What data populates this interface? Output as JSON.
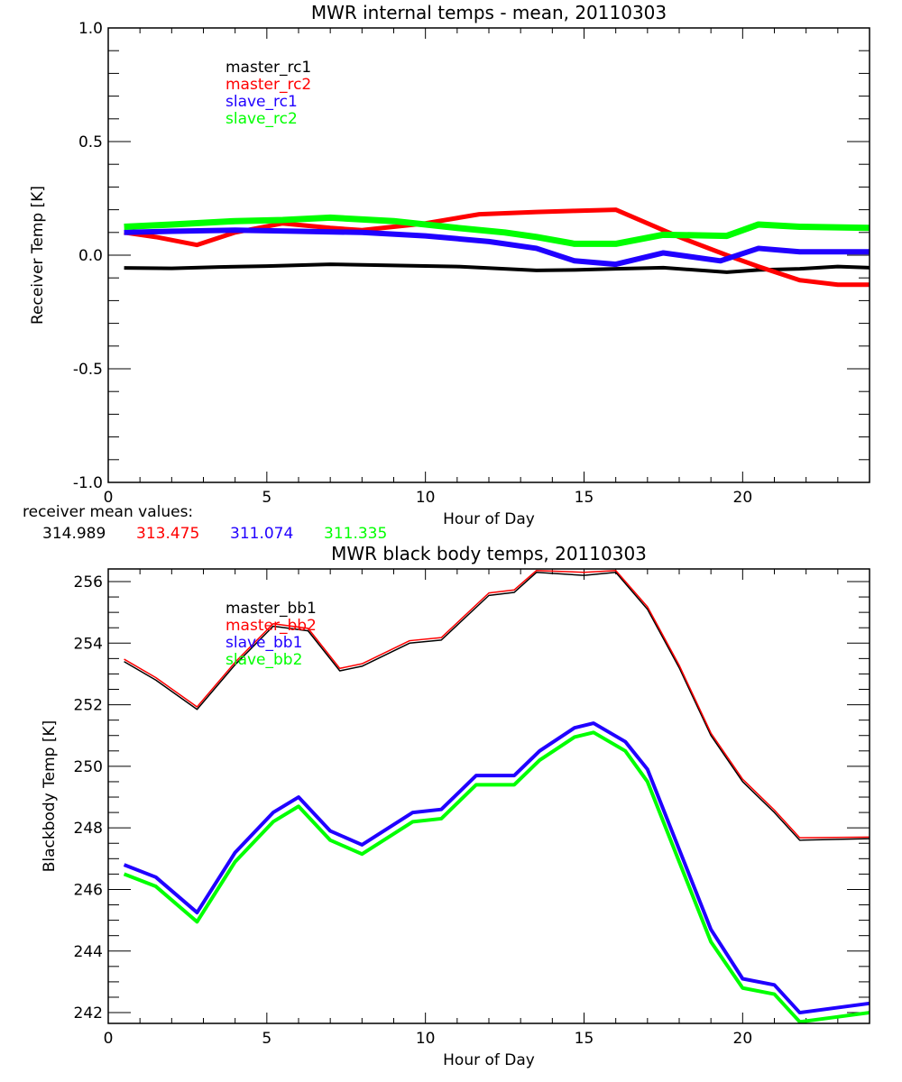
{
  "chart_data": [
    {
      "type": "line",
      "title": "MWR internal temps - mean, 20110303",
      "xlabel": "Hour of Day",
      "ylabel": "Receiver Temp [K]",
      "xlim": [
        0,
        24
      ],
      "ylim": [
        -1.0,
        1.0
      ],
      "xticks": [
        "0",
        "5",
        "10",
        "15",
        "20"
      ],
      "xtick_values": [
        0,
        5,
        10,
        15,
        20
      ],
      "yticks": [
        "-1.0",
        "-0.5",
        "0.0",
        "0.5",
        "1.0"
      ],
      "ytick_values": [
        -1.0,
        -0.5,
        0.0,
        0.5,
        1.0
      ],
      "grid": false,
      "legend_placement": "top-left",
      "data_gap_hours": [
        13.6,
        14.7
      ],
      "series": [
        {
          "name": "master_rc1",
          "color": "#000000",
          "x": [
            0.5,
            2.0,
            3.5,
            5.0,
            7.0,
            9.0,
            11.0,
            13.5,
            14.7,
            16.0,
            17.5,
            19.5,
            20.5,
            21.8,
            23.0,
            24.0
          ],
          "y": [
            -0.056,
            -0.058,
            -0.052,
            -0.048,
            -0.04,
            -0.045,
            -0.05,
            -0.067,
            -0.065,
            -0.06,
            -0.055,
            -0.075,
            -0.065,
            -0.06,
            -0.05,
            -0.055
          ]
        },
        {
          "name": "master_rc2",
          "color": "#ff0000",
          "x": [
            0.5,
            1.5,
            2.8,
            4.0,
            5.5,
            7.0,
            8.0,
            10.0,
            11.7,
            13.5,
            14.7,
            16.0,
            17.0,
            18.0,
            19.5,
            20.5,
            21.8,
            23.0,
            24.0
          ],
          "y": [
            0.1,
            0.08,
            0.045,
            0.1,
            0.14,
            0.12,
            0.11,
            0.14,
            0.18,
            0.19,
            0.195,
            0.2,
            0.14,
            0.08,
            0.0,
            -0.05,
            -0.11,
            -0.13,
            -0.13
          ]
        },
        {
          "name": "slave_rc1",
          "color": "#2000ff",
          "x": [
            0.5,
            2.0,
            4.0,
            6.0,
            8.0,
            10.0,
            12.0,
            13.5,
            14.7,
            16.0,
            17.5,
            19.3,
            20.5,
            21.8,
            24.0
          ],
          "y": [
            0.1,
            0.105,
            0.11,
            0.105,
            0.1,
            0.085,
            0.06,
            0.03,
            -0.025,
            -0.04,
            0.01,
            -0.025,
            0.03,
            0.015,
            0.015
          ]
        },
        {
          "name": "slave_rc2",
          "color": "#00ff00",
          "x": [
            0.5,
            2.0,
            4.0,
            5.5,
            7.0,
            9.0,
            11.0,
            12.5,
            13.5,
            14.7,
            16.0,
            17.5,
            19.5,
            20.5,
            21.8,
            24.0
          ],
          "y": [
            0.125,
            0.135,
            0.15,
            0.155,
            0.165,
            0.15,
            0.12,
            0.1,
            0.08,
            0.05,
            0.05,
            0.09,
            0.085,
            0.135,
            0.125,
            0.12
          ]
        }
      ],
      "annotation_label": "receiver mean values:",
      "mean_values": [
        {
          "text": "314.989",
          "color": "#000000"
        },
        {
          "text": "313.475",
          "color": "#ff0000"
        },
        {
          "text": "311.074",
          "color": "#2000ff"
        },
        {
          "text": "311.335",
          "color": "#00ff00"
        }
      ]
    },
    {
      "type": "line",
      "title": "MWR black body temps, 20110303",
      "xlabel": "Hour of Day",
      "ylabel": "Blackbody Temp [K]",
      "xlim": [
        0,
        24
      ],
      "ylim": [
        241.65,
        256.41
      ],
      "xticks": [
        "0",
        "5",
        "10",
        "15",
        "20"
      ],
      "xtick_values": [
        0,
        5,
        10,
        15,
        20
      ],
      "yticks": [
        "242",
        "244",
        "246",
        "248",
        "250",
        "252",
        "254",
        "256"
      ],
      "ytick_values": [
        242,
        244,
        246,
        248,
        250,
        252,
        254,
        256
      ],
      "grid": false,
      "legend_placement": "top-left",
      "series": [
        {
          "name": "master_bb1",
          "color": "#000000",
          "x": [
            0.5,
            1.5,
            2.8,
            4.0,
            5.2,
            6.3,
            7.3,
            8.0,
            9.5,
            10.5,
            12.0,
            12.8,
            13.5,
            15.0,
            16.0,
            17.0,
            18.0,
            19.0,
            20.0,
            21.0,
            21.8,
            24.0
          ],
          "y": [
            253.4,
            252.8,
            251.85,
            253.3,
            254.55,
            254.4,
            253.1,
            253.25,
            254.0,
            254.1,
            255.55,
            255.65,
            256.3,
            256.2,
            256.3,
            255.1,
            253.2,
            251.0,
            249.5,
            248.5,
            247.6,
            247.65
          ]
        },
        {
          "name": "master_bb2",
          "color": "#ff0000",
          "x": [
            0.5,
            1.5,
            2.8,
            4.0,
            5.2,
            6.3,
            7.3,
            8.0,
            9.5,
            10.5,
            12.0,
            12.8,
            13.5,
            15.0,
            16.0,
            17.0,
            18.0,
            19.0,
            20.0,
            21.0,
            21.8,
            24.0
          ],
          "y": [
            253.48,
            252.88,
            251.93,
            253.38,
            254.63,
            254.48,
            253.18,
            253.33,
            254.08,
            254.18,
            255.63,
            255.73,
            256.36,
            256.3,
            256.36,
            255.18,
            253.28,
            251.08,
            249.58,
            248.58,
            247.68,
            247.7
          ]
        },
        {
          "name": "slave_bb1",
          "color": "#2000ff",
          "x": [
            0.5,
            1.5,
            2.8,
            4.0,
            5.2,
            6.0,
            7.0,
            8.0,
            9.6,
            10.5,
            11.6,
            12.8,
            13.6,
            14.7,
            15.3,
            16.3,
            17.0,
            18.0,
            19.0,
            20.0,
            21.0,
            21.8,
            24.0
          ],
          "y": [
            246.8,
            246.4,
            245.25,
            247.2,
            248.5,
            249.0,
            247.9,
            247.45,
            248.5,
            248.6,
            249.7,
            249.7,
            250.5,
            251.25,
            251.4,
            250.8,
            249.9,
            247.3,
            244.7,
            243.1,
            242.9,
            242.0,
            242.3
          ]
        },
        {
          "name": "slave_bb2",
          "color": "#00ff00",
          "x": [
            0.5,
            1.5,
            2.8,
            4.0,
            5.2,
            6.0,
            7.0,
            8.0,
            9.6,
            10.5,
            11.6,
            12.8,
            13.6,
            14.7,
            15.3,
            16.3,
            17.0,
            18.0,
            19.0,
            20.0,
            21.0,
            21.8,
            24.0
          ],
          "y": [
            246.5,
            246.1,
            244.95,
            246.9,
            248.2,
            248.7,
            247.6,
            247.15,
            248.2,
            248.3,
            249.4,
            249.4,
            250.2,
            250.95,
            251.1,
            250.5,
            249.5,
            246.9,
            244.3,
            242.8,
            242.6,
            241.7,
            242.0
          ]
        }
      ]
    }
  ]
}
